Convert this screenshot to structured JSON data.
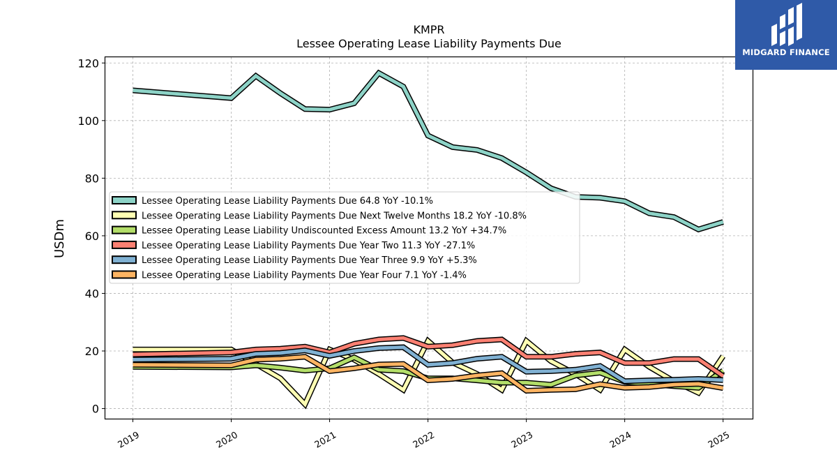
{
  "brand": {
    "name": "MIDGARD FINANCE"
  },
  "chart_data": {
    "type": "line",
    "title": "KMPR",
    "subtitle": "Lessee Operating Lease Liability Payments Due",
    "ylabel": "USDm",
    "xlabel": "",
    "ylim": [
      -3.5,
      122
    ],
    "xlim": [
      2018.72,
      2025.3
    ],
    "yticks": [
      0,
      20,
      40,
      60,
      80,
      100,
      120
    ],
    "xticks": [
      "2019",
      "2020",
      "2021",
      "2022",
      "2023",
      "2024",
      "2025"
    ],
    "grid": true,
    "legend_position": "center-left",
    "series": [
      {
        "name": "Lessee Operating Lease Liability Payments Due",
        "legend": "Lessee Operating Lease Liability Payments Due  64.8 YoY -10.1%",
        "color": "#8dd3c7",
        "x": [
          "2019-01",
          "2020-01",
          "2020-04",
          "2020-07",
          "2020-10",
          "2021-01",
          "2021-04",
          "2021-07",
          "2021-10",
          "2022-01",
          "2022-04",
          "2022-07",
          "2022-10",
          "2023-01",
          "2023-04",
          "2023-07",
          "2023-10",
          "2024-01",
          "2024-04",
          "2024-07",
          "2024-10",
          "2025-01"
        ],
        "y": [
          110.5,
          107.8,
          115.5,
          109.5,
          104.0,
          103.8,
          106.0,
          116.5,
          111.8,
          94.8,
          90.8,
          89.8,
          87.0,
          82.0,
          76.5,
          73.5,
          73.2,
          72.0,
          67.8,
          66.5,
          62.2,
          64.8
        ]
      },
      {
        "name": "Lessee Operating Lease Liability Payments Due Next Twelve Months",
        "legend": "Lessee Operating Lease Liability Payments Due Next Twelve Months  18.2 YoY -10.8%",
        "color": "#ffffb3",
        "x": [
          "2019-01",
          "2020-01",
          "2020-04",
          "2020-07",
          "2020-10",
          "2021-01",
          "2021-04",
          "2021-07",
          "2021-10",
          "2022-01",
          "2022-04",
          "2022-07",
          "2022-10",
          "2023-01",
          "2023-04",
          "2023-07",
          "2023-10",
          "2024-01",
          "2024-04",
          "2024-07",
          "2024-10",
          "2025-01"
        ],
        "y": [
          20.5,
          20.5,
          15.5,
          10.5,
          1.5,
          20.5,
          17.0,
          12.0,
          6.5,
          23.5,
          16.0,
          12.0,
          6.5,
          23.5,
          16.5,
          12.0,
          6.5,
          20.5,
          14.5,
          9.5,
          5.5,
          18.2
        ]
      },
      {
        "name": "Lessee Operating Lease Liability Undiscounted Excess Amount",
        "legend": "Lessee Operating Lease Liability Undiscounted Excess Amount  13.2 YoY +34.7%",
        "color": "#b3de69",
        "x": [
          "2019-01",
          "2020-01",
          "2020-04",
          "2020-07",
          "2020-10",
          "2021-01",
          "2021-04",
          "2021-07",
          "2021-10",
          "2022-01",
          "2022-04",
          "2022-07",
          "2022-10",
          "2023-01",
          "2023-04",
          "2023-07",
          "2023-10",
          "2024-01",
          "2024-04",
          "2024-07",
          "2024-10",
          "2025-01"
        ],
        "y": [
          14.5,
          14.3,
          15.0,
          14.2,
          13.2,
          14.0,
          17.8,
          13.5,
          13.0,
          10.5,
          10.5,
          9.8,
          9.0,
          9.0,
          8.3,
          11.5,
          12.5,
          9.3,
          8.5,
          7.8,
          7.2,
          13.2
        ]
      },
      {
        "name": "Lessee Operating Lease Liability Payments Due Year Two",
        "legend": "Lessee Operating Lease Liability Payments Due Year Two  11.3 YoY -27.1%",
        "color": "#fb8072",
        "x": [
          "2019-01",
          "2020-01",
          "2020-04",
          "2020-07",
          "2020-10",
          "2021-01",
          "2021-04",
          "2021-07",
          "2021-10",
          "2022-01",
          "2022-04",
          "2022-07",
          "2022-10",
          "2023-01",
          "2023-04",
          "2023-07",
          "2023-10",
          "2024-01",
          "2024-04",
          "2024-07",
          "2024-10",
          "2025-01"
        ],
        "y": [
          18.8,
          19.5,
          20.5,
          20.8,
          21.5,
          19.5,
          22.5,
          24.0,
          24.5,
          21.5,
          22.0,
          23.5,
          24.0,
          18.0,
          18.0,
          19.0,
          19.5,
          15.8,
          15.8,
          17.2,
          17.2,
          11.3
        ]
      },
      {
        "name": "Lessee Operating Lease Liability Payments Due Year Three",
        "legend": "Lessee Operating Lease Liability Payments Due Year Three  9.9 YoY +5.3%",
        "color": "#80b1d3",
        "x": [
          "2019-01",
          "2020-01",
          "2020-04",
          "2020-07",
          "2020-10",
          "2021-01",
          "2021-04",
          "2021-07",
          "2021-10",
          "2022-01",
          "2022-04",
          "2022-07",
          "2022-10",
          "2023-01",
          "2023-04",
          "2023-07",
          "2023-10",
          "2024-01",
          "2024-04",
          "2024-07",
          "2024-10",
          "2025-01"
        ],
        "y": [
          17.0,
          17.3,
          19.0,
          19.3,
          20.2,
          18.3,
          20.0,
          21.0,
          21.3,
          15.2,
          15.8,
          17.3,
          18.0,
          12.8,
          13.0,
          13.5,
          14.8,
          9.5,
          9.8,
          10.0,
          10.3,
          9.9
        ]
      },
      {
        "name": "Lessee Operating Lease Liability Payments Due Year Four",
        "legend": "Lessee Operating Lease Liability Payments Due Year Four  7.1 YoY -1.4%",
        "color": "#fdb462",
        "x": [
          "2019-01",
          "2020-01",
          "2020-04",
          "2020-07",
          "2020-10",
          "2021-01",
          "2021-04",
          "2021-07",
          "2021-10",
          "2022-01",
          "2022-04",
          "2022-07",
          "2022-10",
          "2023-01",
          "2023-04",
          "2023-07",
          "2023-10",
          "2024-01",
          "2024-04",
          "2024-07",
          "2024-10",
          "2025-01"
        ],
        "y": [
          15.2,
          15.0,
          17.0,
          17.3,
          18.0,
          13.0,
          14.0,
          15.3,
          15.5,
          9.8,
          10.3,
          11.5,
          12.3,
          6.2,
          6.5,
          6.7,
          8.5,
          7.2,
          7.5,
          8.3,
          8.6,
          7.1
        ]
      }
    ]
  }
}
